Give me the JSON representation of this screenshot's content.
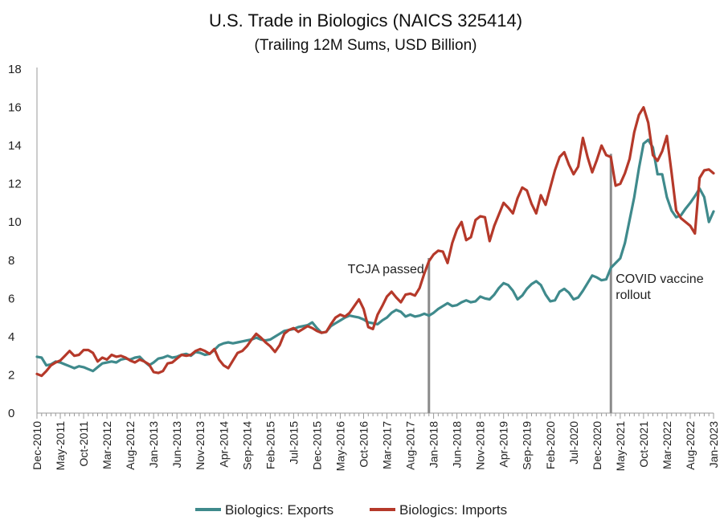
{
  "chart_data": {
    "type": "line",
    "title": "U.S. Trade in Biologics (NAICS 325414)",
    "subtitle": "(Trailing 12M Sums, USD Billion)",
    "xlabel": "",
    "ylabel": "",
    "ylim": [
      0,
      18
    ],
    "yticks": [
      0,
      2,
      4,
      6,
      8,
      10,
      12,
      14,
      16,
      18
    ],
    "grid": false,
    "legend_position": "bottom",
    "x_start": "Dec-2010",
    "x_end": "Jan-2023",
    "x_count": 146,
    "xticks": [
      {
        "label": "Dec-2010",
        "index": 0
      },
      {
        "label": "May-2011",
        "index": 5
      },
      {
        "label": "Oct-2011",
        "index": 10
      },
      {
        "label": "Mar-2012",
        "index": 15
      },
      {
        "label": "Aug-2012",
        "index": 20
      },
      {
        "label": "Jan-2013",
        "index": 25
      },
      {
        "label": "Jun-2013",
        "index": 30
      },
      {
        "label": "Nov-2013",
        "index": 35
      },
      {
        "label": "Apr-2014",
        "index": 40
      },
      {
        "label": "Sep-2014",
        "index": 45
      },
      {
        "label": "Feb-2015",
        "index": 50
      },
      {
        "label": "Jul-2015",
        "index": 55
      },
      {
        "label": "Dec-2015",
        "index": 60
      },
      {
        "label": "May-2016",
        "index": 65
      },
      {
        "label": "Oct-2016",
        "index": 70
      },
      {
        "label": "Mar-2017",
        "index": 75
      },
      {
        "label": "Aug-2017",
        "index": 80
      },
      {
        "label": "Jan-2018",
        "index": 85
      },
      {
        "label": "Jun-2018",
        "index": 90
      },
      {
        "label": "Nov-2018",
        "index": 95
      },
      {
        "label": "Apr-2019",
        "index": 100
      },
      {
        "label": "Sep-2019",
        "index": 105
      },
      {
        "label": "Feb-2020",
        "index": 110
      },
      {
        "label": "Jul-2020",
        "index": 115
      },
      {
        "label": "Dec-2020",
        "index": 120
      },
      {
        "label": "May-2021",
        "index": 125
      },
      {
        "label": "Oct-2021",
        "index": 130
      },
      {
        "label": "Mar-2022",
        "index": 135
      },
      {
        "label": "Aug-2022",
        "index": 140
      },
      {
        "label": "Jan-2023",
        "index": 145
      }
    ],
    "series": [
      {
        "name": "Biologics: Exports",
        "color": "#3f8a8c",
        "values": [
          2.95,
          2.9,
          2.5,
          2.55,
          2.7,
          2.65,
          2.55,
          2.45,
          2.35,
          2.45,
          2.4,
          2.3,
          2.2,
          2.4,
          2.6,
          2.65,
          2.7,
          2.65,
          2.8,
          2.85,
          2.8,
          2.9,
          2.95,
          2.7,
          2.5,
          2.65,
          2.85,
          2.9,
          3.0,
          2.9,
          2.95,
          3.05,
          3.1,
          3.0,
          3.2,
          3.15,
          3.05,
          3.1,
          3.3,
          3.55,
          3.65,
          3.7,
          3.65,
          3.7,
          3.75,
          3.8,
          3.85,
          3.95,
          3.85,
          3.8,
          3.85,
          4.0,
          4.15,
          4.3,
          4.35,
          4.4,
          4.5,
          4.55,
          4.6,
          4.75,
          4.45,
          4.2,
          4.25,
          4.55,
          4.7,
          4.85,
          5.0,
          5.1,
          5.05,
          5.0,
          4.9,
          4.75,
          4.7,
          4.65,
          4.85,
          5.0,
          5.25,
          5.4,
          5.3,
          5.05,
          5.15,
          5.05,
          5.1,
          5.2,
          5.1,
          5.25,
          5.45,
          5.6,
          5.75,
          5.6,
          5.65,
          5.8,
          5.9,
          5.8,
          5.85,
          6.1,
          6.0,
          5.95,
          6.2,
          6.55,
          6.8,
          6.7,
          6.4,
          5.95,
          6.15,
          6.5,
          6.75,
          6.9,
          6.7,
          6.2,
          5.85,
          5.9,
          6.35,
          6.5,
          6.3,
          5.95,
          6.05,
          6.4,
          6.8,
          7.2,
          7.1,
          6.95,
          7.0,
          7.6,
          7.85,
          8.1,
          8.9,
          10.1,
          11.3,
          12.8,
          14.1,
          14.3,
          13.9,
          12.5,
          12.5,
          11.3,
          10.6,
          10.25,
          10.35,
          10.7,
          11.0,
          11.35,
          11.75,
          11.3,
          10.0,
          10.55
        ]
      },
      {
        "name": "Biologics: Imports",
        "color": "#b5392a",
        "values": [
          2.05,
          1.95,
          2.2,
          2.5,
          2.65,
          2.75,
          3.0,
          3.25,
          3.0,
          3.05,
          3.3,
          3.3,
          3.15,
          2.7,
          2.9,
          2.8,
          3.05,
          2.95,
          3.0,
          2.9,
          2.75,
          2.65,
          2.8,
          2.7,
          2.55,
          2.15,
          2.1,
          2.2,
          2.6,
          2.65,
          2.85,
          3.05,
          3.0,
          3.05,
          3.25,
          3.35,
          3.25,
          3.1,
          3.35,
          2.8,
          2.5,
          2.35,
          2.75,
          3.15,
          3.25,
          3.5,
          3.85,
          4.15,
          3.95,
          3.7,
          3.5,
          3.2,
          3.55,
          4.15,
          4.35,
          4.45,
          4.25,
          4.4,
          4.55,
          4.45,
          4.3,
          4.2,
          4.25,
          4.65,
          5.0,
          5.15,
          5.05,
          5.25,
          5.6,
          5.95,
          5.45,
          4.5,
          4.4,
          5.15,
          5.6,
          6.1,
          6.35,
          6.05,
          5.8,
          6.2,
          6.25,
          6.15,
          6.55,
          7.3,
          7.95,
          8.3,
          8.5,
          8.45,
          7.85,
          8.9,
          9.6,
          10.0,
          9.05,
          9.2,
          10.1,
          10.3,
          10.25,
          9.0,
          9.8,
          10.4,
          11.0,
          10.75,
          10.45,
          11.25,
          11.8,
          11.65,
          10.95,
          10.45,
          11.4,
          10.9,
          11.8,
          12.7,
          13.4,
          13.65,
          13.0,
          12.5,
          12.9,
          14.4,
          13.4,
          12.6,
          13.25,
          14.0,
          13.5,
          13.4,
          11.9,
          12.0,
          12.55,
          13.3,
          14.7,
          15.6,
          16.0,
          15.2,
          13.5,
          13.2,
          13.7,
          14.5,
          12.6,
          10.6,
          10.2,
          10.0,
          9.8,
          9.4,
          12.3,
          12.7,
          12.75,
          12.55
        ]
      }
    ],
    "annotations": [
      {
        "lines": [
          "TCJA passed"
        ],
        "at_label": "Dec-2017",
        "index": 84
      },
      {
        "lines": [
          "COVID vaccine",
          "rollout"
        ],
        "at_label": "Mar-2021",
        "index": 123
      }
    ]
  }
}
